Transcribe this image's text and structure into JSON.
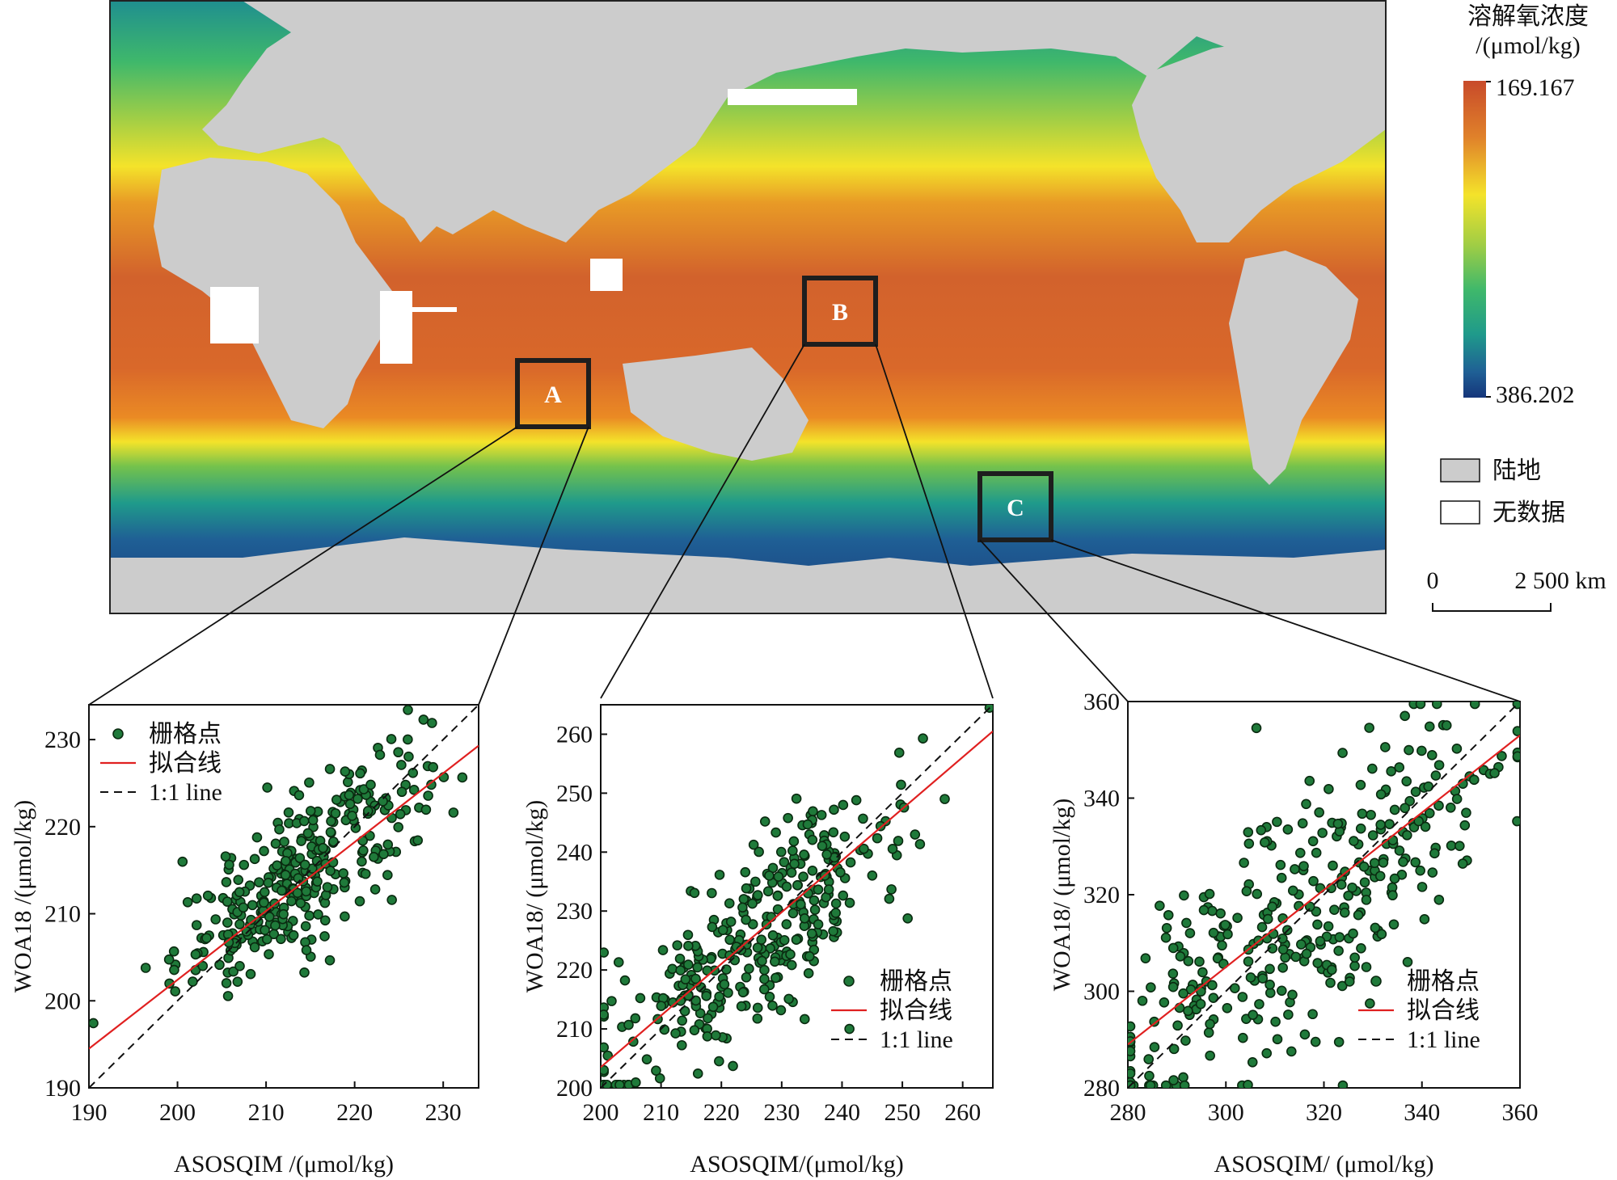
{
  "map": {
    "legend": {
      "title_line1": "溶解氧浓度",
      "title_line2": "/(μmol/kg)",
      "max_label": "169.167",
      "min_label": "386.202",
      "land_label": "陆地",
      "nodata_label": "无数据"
    },
    "scale_bar": {
      "start_label": "0",
      "end_label": "2 500 km"
    },
    "colors": {
      "land": "#cccccc",
      "nodata": "#ffffff",
      "ramp": [
        "#c8582c",
        "#e07a22",
        "#f1ad28",
        "#f4e32a",
        "#a9d043",
        "#3fb86b",
        "#1f9a8b",
        "#1f6f9a",
        "#15357a"
      ]
    },
    "regions": [
      {
        "label": "A"
      },
      {
        "label": "B"
      },
      {
        "label": "C"
      }
    ]
  },
  "chart_data": [
    {
      "type": "scatter",
      "region": "A",
      "xlabel": "ASOSQIM /(μmol/kg)",
      "ylabel": "WOA18 /(μmol/kg)",
      "xlim": [
        190,
        234
      ],
      "ylim": [
        190,
        234
      ],
      "xticks": [
        "190",
        "200",
        "210",
        "220",
        "230"
      ],
      "yticks": [
        "190",
        "200",
        "210",
        "220",
        "230"
      ],
      "legend_position": "top-left",
      "legend": {
        "points": "栅格点",
        "fit": "拟合线",
        "oneone": "1:1 line"
      },
      "fit_line": {
        "x": [
          190,
          234
        ],
        "y": [
          194.5,
          229.3
        ]
      },
      "point_center": [
        214,
        215
      ],
      "point_spread": [
        7,
        7
      ],
      "point_count": 320,
      "point_color": "#1f7a3a"
    },
    {
      "type": "scatter",
      "region": "B",
      "xlabel": "ASOSQIM/(μmol/kg)",
      "ylabel": "WOA18/ (μmol/kg)",
      "xlim": [
        200,
        265
      ],
      "ylim": [
        200,
        265
      ],
      "xticks": [
        "200",
        "210",
        "220",
        "230",
        "240",
        "250",
        "260"
      ],
      "yticks": [
        "200",
        "210",
        "220",
        "230",
        "240",
        "250",
        "260"
      ],
      "legend_position": "bottom-right",
      "legend": {
        "points": "栅格点",
        "fit": "拟合线",
        "oneone": "1:1 line"
      },
      "fit_line": {
        "x": [
          200,
          265
        ],
        "y": [
          203.5,
          260.5
        ]
      },
      "point_center": [
        225,
        225
      ],
      "point_spread": [
        13,
        13
      ],
      "point_count": 330,
      "point_color": "#1f7a3a"
    },
    {
      "type": "scatter",
      "region": "C",
      "xlabel": "ASOSQIM/ (μmol/kg)",
      "ylabel": "WOA18/ (μmol/kg)",
      "xlim": [
        280,
        360
      ],
      "ylim": [
        280,
        360
      ],
      "xticks": [
        "280",
        "300",
        "320",
        "340",
        "360"
      ],
      "yticks": [
        "280",
        "300",
        "320",
        "340",
        "360"
      ],
      "legend_position": "bottom-right",
      "legend": {
        "points": "栅格点",
        "fit": "拟合线",
        "oneone": "1:1 line"
      },
      "fit_line": {
        "x": [
          280,
          360
        ],
        "y": [
          289,
          353
        ]
      },
      "point_center": [
        318,
        318
      ],
      "point_spread": [
        22,
        22
      ],
      "point_count": 340,
      "point_color": "#1f7a3a"
    }
  ]
}
